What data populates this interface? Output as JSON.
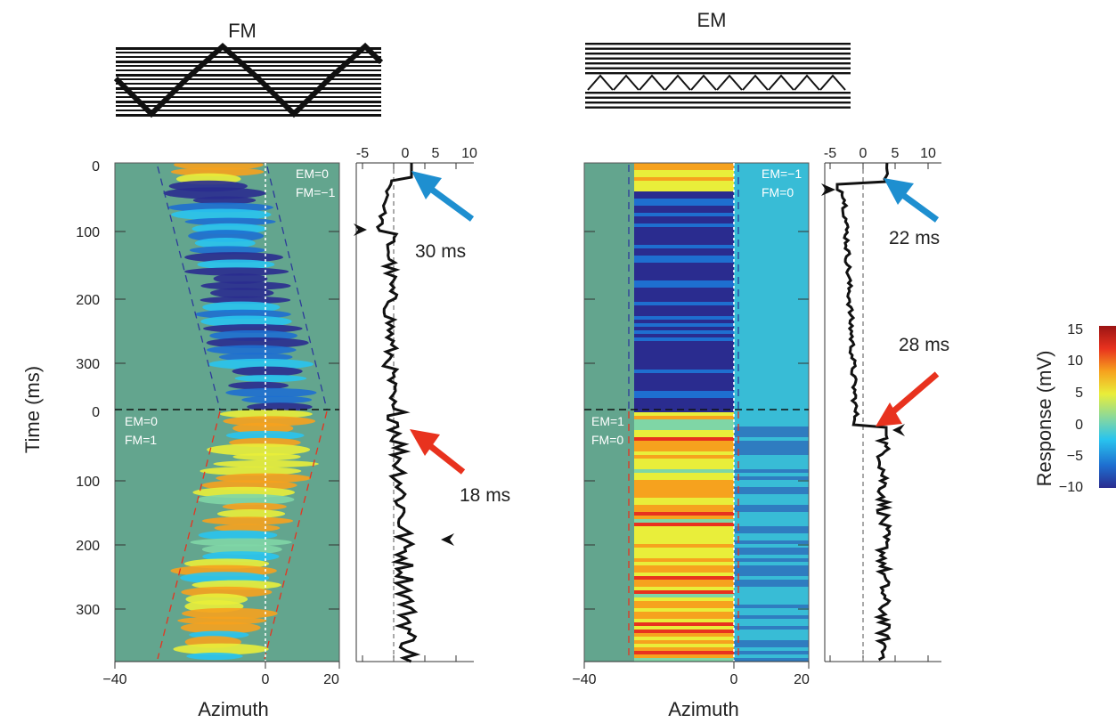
{
  "chart_data": {
    "type": "heatmap",
    "y_axis_label": "Time (ms)",
    "colorbar": {
      "label": "Response (mV)",
      "ticks": [
        "15",
        "10",
        "5",
        "0",
        "−5",
        "−10"
      ],
      "range": [
        -10,
        15
      ],
      "colors": [
        "#2a2c8f",
        "#1e6fd0",
        "#29c4ee",
        "#7fd6a6",
        "#e9ee3a",
        "#f6a21e",
        "#e8321e",
        "#9b1414"
      ]
    },
    "panels": [
      {
        "title": "FM",
        "xlabel": "Azimuth",
        "x_ticks": [
          "−40",
          "0",
          "20"
        ],
        "y_ticks_top": [
          "0",
          "100",
          "200",
          "300"
        ],
        "y_ticks_bottom": [
          "0",
          "100",
          "200",
          "300"
        ],
        "top_condition": [
          "EM=0",
          "FM=−1"
        ],
        "bottom_condition": [
          "EM=0",
          "FM=1"
        ],
        "trace": {
          "x_ticks": [
            "-5",
            "0",
            "5",
            "10"
          ],
          "xlim": [
            -5,
            10
          ],
          "annotations": [
            {
              "text": "30 ms",
              "arrow_color": "#1e8fd0"
            },
            {
              "text": "18 ms",
              "arrow_color": "#e8321e"
            }
          ]
        }
      },
      {
        "title": "EM",
        "xlabel": "Azimuth",
        "x_ticks": [
          "−40",
          "0",
          "20"
        ],
        "y_ticks_top": [
          "0",
          "100",
          "200",
          "300"
        ],
        "y_ticks_bottom": [
          "0",
          "100",
          "200",
          "300"
        ],
        "top_condition": [
          "EM=−1",
          "FM=0"
        ],
        "bottom_condition": [
          "EM=1",
          "FM=0"
        ],
        "trace": {
          "x_ticks": [
            "-5",
            "0",
            "5",
            "10"
          ],
          "xlim": [
            -5,
            10
          ],
          "annotations": [
            {
              "text": "22 ms",
              "arrow_color": "#1e8fd0"
            },
            {
              "text": "28 ms",
              "arrow_color": "#e8321e"
            }
          ]
        }
      }
    ]
  }
}
